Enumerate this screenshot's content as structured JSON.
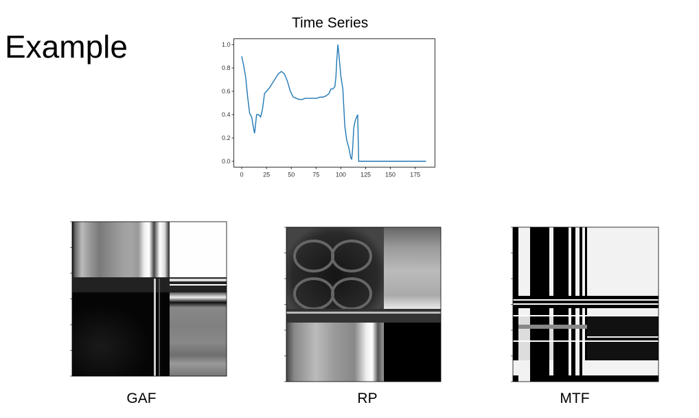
{
  "slide": {
    "title": "Example"
  },
  "chart_data": [
    {
      "type": "line",
      "title": "Time Series",
      "xlabel": "",
      "ylabel": "",
      "xlim": [
        -8,
        195
      ],
      "ylim": [
        -0.05,
        1.05
      ],
      "x_ticks": [
        0,
        25,
        50,
        75,
        100,
        125,
        150,
        175
      ],
      "y_ticks": [
        0.0,
        0.2,
        0.4,
        0.6,
        0.8,
        1.0
      ],
      "grid": false,
      "series_color": "#1f77b4",
      "series": [
        {
          "x": [
            0,
            2,
            4,
            6,
            8,
            10,
            12,
            13,
            15,
            17,
            19,
            21,
            23,
            25,
            28,
            31,
            34,
            37,
            40,
            43,
            46,
            49,
            52,
            55,
            58,
            61,
            64,
            67,
            70,
            73,
            76,
            79,
            82,
            85,
            88,
            90,
            92,
            94,
            95,
            96,
            97,
            98,
            100,
            102,
            104,
            106,
            108,
            110,
            111,
            112,
            113,
            114,
            115,
            116,
            117,
            118,
            119,
            120,
            130,
            150,
            170,
            186
          ],
          "y": [
            0.9,
            0.82,
            0.72,
            0.55,
            0.41,
            0.38,
            0.28,
            0.24,
            0.4,
            0.4,
            0.38,
            0.45,
            0.58,
            0.6,
            0.63,
            0.67,
            0.71,
            0.75,
            0.77,
            0.75,
            0.69,
            0.6,
            0.55,
            0.54,
            0.53,
            0.53,
            0.54,
            0.54,
            0.54,
            0.54,
            0.54,
            0.55,
            0.55,
            0.56,
            0.58,
            0.62,
            0.62,
            0.64,
            0.72,
            0.88,
            1.0,
            0.92,
            0.73,
            0.62,
            0.3,
            0.18,
            0.12,
            0.03,
            0.02,
            0.12,
            0.28,
            0.33,
            0.36,
            0.38,
            0.4,
            0.0,
            0.0,
            0.0,
            0.0,
            0.0,
            0.0,
            0.0
          ]
        }
      ]
    },
    {
      "type": "heatmap",
      "caption": "GAF"
    },
    {
      "type": "heatmap",
      "caption": "RP"
    },
    {
      "type": "heatmap",
      "caption": "MTF"
    }
  ]
}
